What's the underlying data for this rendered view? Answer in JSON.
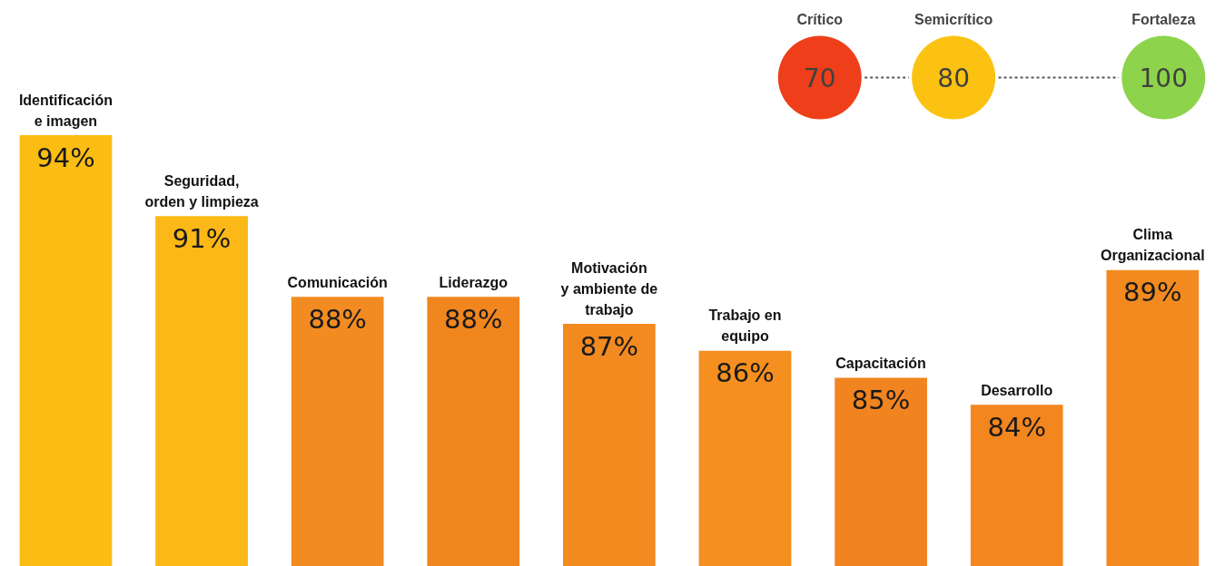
{
  "chart_data": [
    {
      "type": "bar",
      "categories": [
        "Identificación\ne imagen",
        "Seguridad,\norden y limpieza",
        "Comunicación",
        "Liderazgo",
        "Motivación\ny ambiente de\ntrabajo",
        "Trabajo en\nequipo",
        "Capacitación",
        "Desarrollo",
        "Clima\nOrganizacional"
      ],
      "values": [
        94,
        91,
        88,
        88,
        87,
        86,
        85,
        84,
        89
      ],
      "colors": [
        "#fbbd12",
        "#fbb817",
        "#f28c22",
        "#f1861f",
        "#f28a20",
        "#f58f1f",
        "#f28420",
        "#f3861f",
        "#f28a20"
      ],
      "value_labels": [
        "94%",
        "91%",
        "88%",
        "88%",
        "87%",
        "86%",
        "85%",
        "84%",
        "89%"
      ],
      "ylim": [
        78,
        99
      ]
    },
    {
      "type": "other",
      "categories": [
        "Crítico",
        "Semicrítico",
        "Fortaleza"
      ],
      "values": [
        70,
        80,
        100
      ],
      "data_labels": true,
      "colors": [
        "#ee3f1a",
        "#fbc212",
        "#8dd34b"
      ]
    }
  ]
}
